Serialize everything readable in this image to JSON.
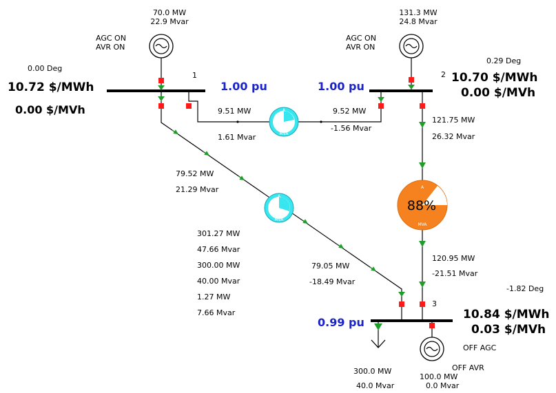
{
  "colors": {
    "line": "#000000",
    "breaker": "#ff1a1a",
    "arrow": "#1e9e28",
    "pu_text": "#1a23c8",
    "gauge_normal": "#38e6f0",
    "gauge_loaded": "#f5821e"
  },
  "gen1": {
    "mw": "70.0 MW",
    "mvar": "22.9 Mvar",
    "agc": "AGC ON",
    "avr": "AVR ON"
  },
  "gen2": {
    "mw": "131.3 MW",
    "mvar": "24.8 Mvar",
    "agc": "AGC ON",
    "avr": "AVR ON"
  },
  "gen3": {
    "mw": "100.0 MW",
    "mvar": "0.0 Mvar",
    "agc": "OFF AGC",
    "avr": "OFF AVR"
  },
  "bus1": {
    "number": "1",
    "angle": "0.00 Deg",
    "price_mw": "10.72 $/MWh",
    "price_mvar": "0.00 $/MVh",
    "voltage": "1.00 pu"
  },
  "bus2": {
    "number": "2",
    "angle": "0.29 Deg",
    "price_mw": "10.70 $/MWh",
    "price_mvar": "0.00 $/MVh",
    "voltage": "1.00 pu"
  },
  "bus3": {
    "number": "3",
    "angle": "-1.82 Deg",
    "price_mw": "10.84 $/MWh",
    "price_mvar": "0.03 $/MVh",
    "voltage": "0.99 pu"
  },
  "line12": {
    "from_mw": "9.51 MW",
    "from_mvar": "1.61 Mvar",
    "to_mw": "9.52 MW",
    "to_mvar": "-1.56 Mvar"
  },
  "line13": {
    "from_mw": "79.52 MW",
    "from_mvar": "21.29 Mvar",
    "to_mw": "79.05 MW",
    "to_mvar": "-18.49 Mvar"
  },
  "line23": {
    "from_mw": "121.75 MW",
    "from_mvar": "26.32 Mvar",
    "to_mw": "120.95 MW",
    "to_mvar": "-21.51 Mvar",
    "loading": "88%"
  },
  "gauge_labels": {
    "top": "A",
    "bottom": "MVA"
  },
  "load3": {
    "mw": "300.0 MW",
    "mvar": "40.0 Mvar"
  },
  "summary": [
    "301.27 MW",
    "47.66 Mvar",
    "300.00 MW",
    "40.00 Mvar",
    "1.27 MW",
    "7.66 Mvar"
  ]
}
